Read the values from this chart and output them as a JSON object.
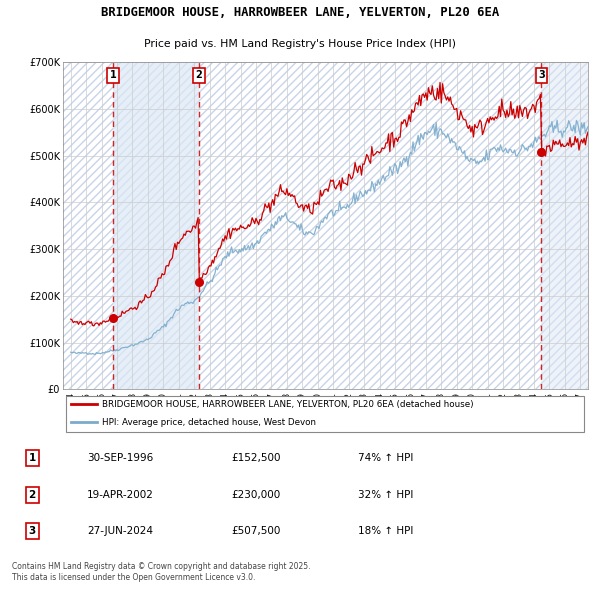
{
  "title_line1": "BRIDGEMOOR HOUSE, HARROWBEER LANE, YELVERTON, PL20 6EA",
  "title_line2": "Price paid vs. HM Land Registry's House Price Index (HPI)",
  "xlim_start": 1993.5,
  "xlim_end": 2027.5,
  "ylim_min": 0,
  "ylim_max": 700000,
  "yticks": [
    0,
    100000,
    200000,
    300000,
    400000,
    500000,
    600000,
    700000
  ],
  "ytick_labels": [
    "£0",
    "£100K",
    "£200K",
    "£300K",
    "£400K",
    "£500K",
    "£600K",
    "£700K"
  ],
  "xticks": [
    1994,
    1995,
    1996,
    1997,
    1998,
    1999,
    2000,
    2001,
    2002,
    2003,
    2004,
    2005,
    2006,
    2007,
    2008,
    2009,
    2010,
    2011,
    2012,
    2013,
    2014,
    2015,
    2016,
    2017,
    2018,
    2019,
    2020,
    2021,
    2022,
    2023,
    2024,
    2025,
    2026,
    2027
  ],
  "grid_color": "#cccccc",
  "hatch_color": "#c8d4e8",
  "shade_color": "#dce8f5",
  "sale1_date": 1996.747,
  "sale1_label": "1",
  "sale1_price": 152500,
  "sale1_date_str": "30-SEP-1996",
  "sale1_price_str": "£152,500",
  "sale1_hpi": "74% ↑ HPI",
  "sale2_date": 2002.298,
  "sale2_label": "2",
  "sale2_price": 230000,
  "sale2_date_str": "19-APR-2002",
  "sale2_price_str": "£230,000",
  "sale2_hpi": "32% ↑ HPI",
  "sale3_date": 2024.486,
  "sale3_label": "3",
  "sale3_price": 507500,
  "sale3_date_str": "27-JUN-2024",
  "sale3_price_str": "£507,500",
  "sale3_hpi": "18% ↑ HPI",
  "line_color_red": "#cc0000",
  "line_color_blue": "#7aabcc",
  "legend_label_red": "BRIDGEMOOR HOUSE, HARROWBEER LANE, YELVERTON, PL20 6EA (detached house)",
  "legend_label_blue": "HPI: Average price, detached house, West Devon",
  "footer_text": "Contains HM Land Registry data © Crown copyright and database right 2025.\nThis data is licensed under the Open Government Licence v3.0.",
  "hpi_monthly": [
    79000,
    78500,
    78200,
    77800,
    77500,
    77300,
    77200,
    77500,
    77800,
    78000,
    78300,
    78500,
    78200,
    77800,
    77400,
    77000,
    76700,
    76500,
    76400,
    76600,
    76900,
    77200,
    77500,
    77800,
    78200,
    78600,
    79100,
    79700,
    80300,
    80900,
    81500,
    82100,
    82700,
    83200,
    83700,
    84200,
    84800,
    85500,
    86300,
    87200,
    88100,
    89000,
    89900,
    90800,
    91700,
    92500,
    93200,
    93800,
    94500,
    95300,
    96200,
    97100,
    98100,
    99100,
    100200,
    101300,
    102500,
    103700,
    104800,
    105900,
    107100,
    109200,
    111400,
    113700,
    116100,
    118500,
    120900,
    123300,
    125700,
    127900,
    129800,
    131500,
    133500,
    136500,
    139700,
    143100,
    146600,
    150200,
    153800,
    157400,
    161000,
    164400,
    167400,
    170000,
    172100,
    174800,
    177200,
    179300,
    181000,
    182400,
    183500,
    184500,
    185400,
    186200,
    187000,
    187800,
    188700,
    191400,
    194400,
    197700,
    201300,
    205100,
    209000,
    213000,
    217000,
    220600,
    223700,
    226400,
    228700,
    232900,
    237300,
    241900,
    246700,
    251600,
    256500,
    261300,
    266000,
    270400,
    274400,
    278000,
    281200,
    284800,
    288100,
    290900,
    293200,
    294900,
    296100,
    296900,
    297400,
    297800,
    298100,
    298400,
    298700,
    299200,
    299900,
    300700,
    301600,
    302600,
    303700,
    304900,
    306100,
    307300,
    308500,
    309600,
    310900,
    314200,
    317700,
    321300,
    325000,
    328500,
    331700,
    334500,
    337000,
    339100,
    340900,
    342400,
    344000,
    347500,
    351200,
    354900,
    358300,
    361200,
    363500,
    365200,
    366200,
    366800,
    367100,
    367200,
    367100,
    365700,
    363800,
    361400,
    358700,
    355800,
    352700,
    349600,
    346600,
    343900,
    341600,
    339800,
    338100,
    336600,
    335300,
    334300,
    333600,
    333400,
    333700,
    334700,
    336300,
    338400,
    340900,
    343600,
    346600,
    350300,
    354200,
    358000,
    361700,
    365100,
    368100,
    370700,
    372900,
    374700,
    376100,
    377200,
    378000,
    378600,
    379000,
    379400,
    379700,
    380200,
    381000,
    382300,
    384000,
    386100,
    388500,
    391000,
    393700,
    396700,
    399800,
    402900,
    406000,
    408900,
    411500,
    413700,
    415500,
    417000,
    418100,
    419000,
    419700,
    420800,
    422200,
    424000,
    426100,
    428400,
    430800,
    433300,
    435700,
    438000,
    440100,
    442000,
    443700,
    446100,
    448700,
    451400,
    454200,
    456900,
    459500,
    461900,
    463900,
    465500,
    466700,
    467500,
    468100,
    469900,
    472100,
    474800,
    477900,
    481300,
    485100,
    489200,
    493500,
    497800,
    501800,
    505400,
    508700,
    512600,
    516600,
    520600,
    524500,
    528100,
    531500,
    534600,
    537500,
    540200,
    542700,
    545100,
    547400,
    549400,
    551000,
    552200,
    552900,
    553200,
    553200,
    553000,
    552800,
    552600,
    552500,
    552500,
    552500,
    550800,
    548600,
    545900,
    542700,
    539300,
    535800,
    532300,
    528900,
    525800,
    523100,
    520800,
    518900,
    516500,
    513700,
    510600,
    507300,
    503900,
    500500,
    497200,
    494100,
    491200,
    488700,
    486500,
    484700,
    483500,
    482800,
    482700,
    483200,
    484200,
    485600,
    487400,
    489400,
    491500,
    493800,
    496100,
    498500,
    501400,
    504400,
    507500,
    510400,
    512800,
    514600,
    515700,
    516100,
    515900,
    515300,
    514600,
    514000,
    513400,
    512800,
    512200,
    511700,
    511200,
    510800,
    510400,
    510100,
    509900,
    509800,
    509800,
    510000,
    510400,
    511100,
    512000,
    513200,
    514600,
    516100,
    517700,
    519300,
    520800,
    522200,
    523500,
    524700,
    526900,
    529300,
    531800,
    534500,
    537200,
    539800,
    542200,
    544500,
    546600,
    548500,
    550200,
    551900,
    553400,
    554700,
    555700,
    556400,
    556900,
    557200,
    557200,
    557100,
    557000,
    556800,
    556700,
    556500,
    557100,
    557900,
    558700,
    559400,
    559900,
    560200,
    560200,
    560000,
    559600,
    559100,
    558600,
    558000,
    558500,
    559200,
    560000,
    560800,
    561400,
    561700,
    561700,
    561300,
    560600,
    559600,
    558500,
    557300,
    556000,
    554700,
    553400,
    552200,
    551100,
    550200,
    549400,
    548900,
    548600,
    548500,
    548600
  ]
}
